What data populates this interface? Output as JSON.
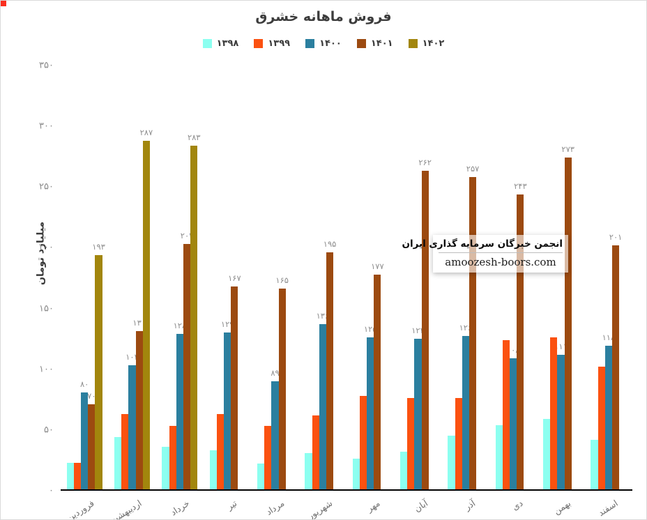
{
  "page": {
    "watermark_line1": "انجمن خبرگان سرمایه گذاری ایران",
    "watermark_line2": "amoozesh-boors.com"
  },
  "chart_data": {
    "type": "bar",
    "title": "فروش ماهانه خشرق",
    "ylabel": "میلیارد تومان",
    "xlabel": "",
    "ylim": [
      0,
      350
    ],
    "grid": false,
    "legend_position": "top",
    "yticks": [
      {
        "value": 0,
        "label": "۰"
      },
      {
        "value": 50,
        "label": "۵۰"
      },
      {
        "value": 100,
        "label": "۱۰۰"
      },
      {
        "value": 150,
        "label": "۱۵۰"
      },
      {
        "value": 200,
        "label": "۲۰۰"
      },
      {
        "value": 250,
        "label": "۲۵۰"
      },
      {
        "value": 300,
        "label": "۳۰۰"
      },
      {
        "value": 350,
        "label": "۳۵۰"
      }
    ],
    "categories": [
      "فروردین",
      "اردیبهشت",
      "خرداد",
      "تیر",
      "مرداد",
      "شهریور",
      "مهر",
      "آبان",
      "آذر",
      "دی",
      "بهمن",
      "اسفند"
    ],
    "series": [
      {
        "name": "۱۳۹۸",
        "color": "#8CFFF0",
        "values": [
          22,
          43,
          35,
          32,
          21,
          30,
          25,
          31,
          44,
          53,
          58,
          41
        ],
        "labels": null
      },
      {
        "name": "۱۳۹۹",
        "color": "#FB5110",
        "values": [
          22,
          62,
          52,
          62,
          52,
          61,
          77,
          75,
          75,
          123,
          125,
          101
        ],
        "labels": null
      },
      {
        "name": "۱۴۰۰",
        "color": "#2B7F9F",
        "values": [
          80,
          102,
          128,
          129,
          89,
          136,
          125,
          124,
          126,
          108,
          111,
          118
        ],
        "labels": [
          "۸۰",
          "۱۰۲",
          "۱۲۸",
          "۱۲۹",
          "۸۹",
          "۱۳۶",
          "۱۲۵",
          "۱۲۴",
          "۱۲۶",
          "۱۰۸",
          "۱۱۱",
          "۱۱۸"
        ]
      },
      {
        "name": "۱۴۰۱",
        "color": "#9C4A10",
        "values": [
          70,
          130,
          202,
          167,
          165,
          195,
          177,
          262,
          257,
          243,
          273,
          201
        ],
        "labels": [
          "۷۰",
          "۱۳۰",
          "۲۰۲",
          "۱۶۷",
          "۱۶۵",
          "۱۹۵",
          "۱۷۷",
          "۲۶۲",
          "۲۵۷",
          "۲۴۳",
          "۲۷۳",
          "۲۰۱"
        ]
      },
      {
        "name": "۱۴۰۲",
        "color": "#A2860D",
        "values": [
          193,
          287,
          283,
          null,
          null,
          null,
          null,
          null,
          null,
          null,
          null,
          null
        ],
        "labels": [
          "۱۹۳",
          "۲۸۷",
          "۲۸۳",
          null,
          null,
          null,
          null,
          null,
          null,
          null,
          null,
          null
        ]
      }
    ]
  }
}
